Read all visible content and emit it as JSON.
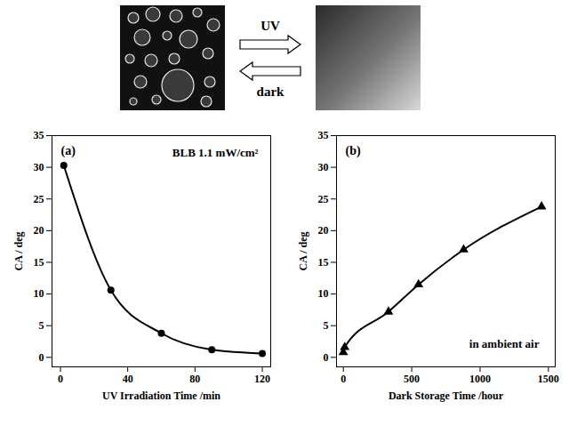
{
  "diagram": {
    "arrows": [
      {
        "label": "UV",
        "direction": "right"
      },
      {
        "label": "dark",
        "direction": "left"
      }
    ]
  },
  "chart_data": [
    {
      "type": "line",
      "title": "(a)",
      "annotations": [
        "BLB 1.1 mW/cm²"
      ],
      "x_label": "UV Irradiation Time /min",
      "y_label": "CA / deg",
      "x": [
        2,
        30,
        60,
        90,
        120
      ],
      "values": [
        30.3,
        10.6,
        3.8,
        1.2,
        0.6
      ],
      "marker": "circle",
      "line_style": "solid",
      "color": "#000000",
      "xlim": [
        -5,
        125
      ],
      "xticks": [
        0,
        40,
        80,
        120
      ],
      "ylim": [
        -1.5,
        35
      ],
      "yticks": [
        0,
        5,
        10,
        15,
        20,
        25,
        30,
        35
      ]
    },
    {
      "type": "line",
      "title": "(b)",
      "annotations": [
        "in ambient air"
      ],
      "x_label": "Dark Storage Time /hour",
      "y_label": "CA / deg",
      "x": [
        0,
        10,
        330,
        550,
        880,
        1450
      ],
      "values": [
        0.8,
        1.6,
        7.2,
        11.5,
        17,
        23.8
      ],
      "marker": "triangle",
      "line_style": "solid",
      "color": "#000000",
      "xlim": [
        -50,
        1550
      ],
      "xticks": [
        0,
        500,
        1000,
        1500
      ],
      "ylim": [
        -1.5,
        35
      ],
      "yticks": [
        0,
        5,
        10,
        15,
        20,
        25,
        30,
        35
      ]
    }
  ]
}
